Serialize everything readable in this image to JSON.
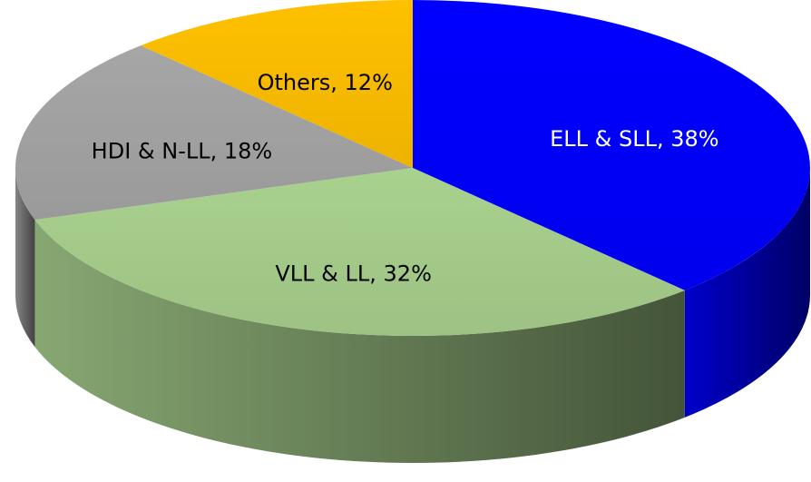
{
  "chart_data": {
    "type": "pie",
    "values": [
      38,
      32,
      18,
      12
    ],
    "value_labels": [
      "ELL & SLL, 38%",
      "VLL & LL, 32%",
      "HDI & N-LL, 18%",
      "Others, 12%"
    ],
    "colors": [
      "#0000ff",
      "#a9d18e",
      "#a6a6a6",
      "#ffc000"
    ],
    "start_angle": 0,
    "direction": "clockwise",
    "three_d": true
  }
}
